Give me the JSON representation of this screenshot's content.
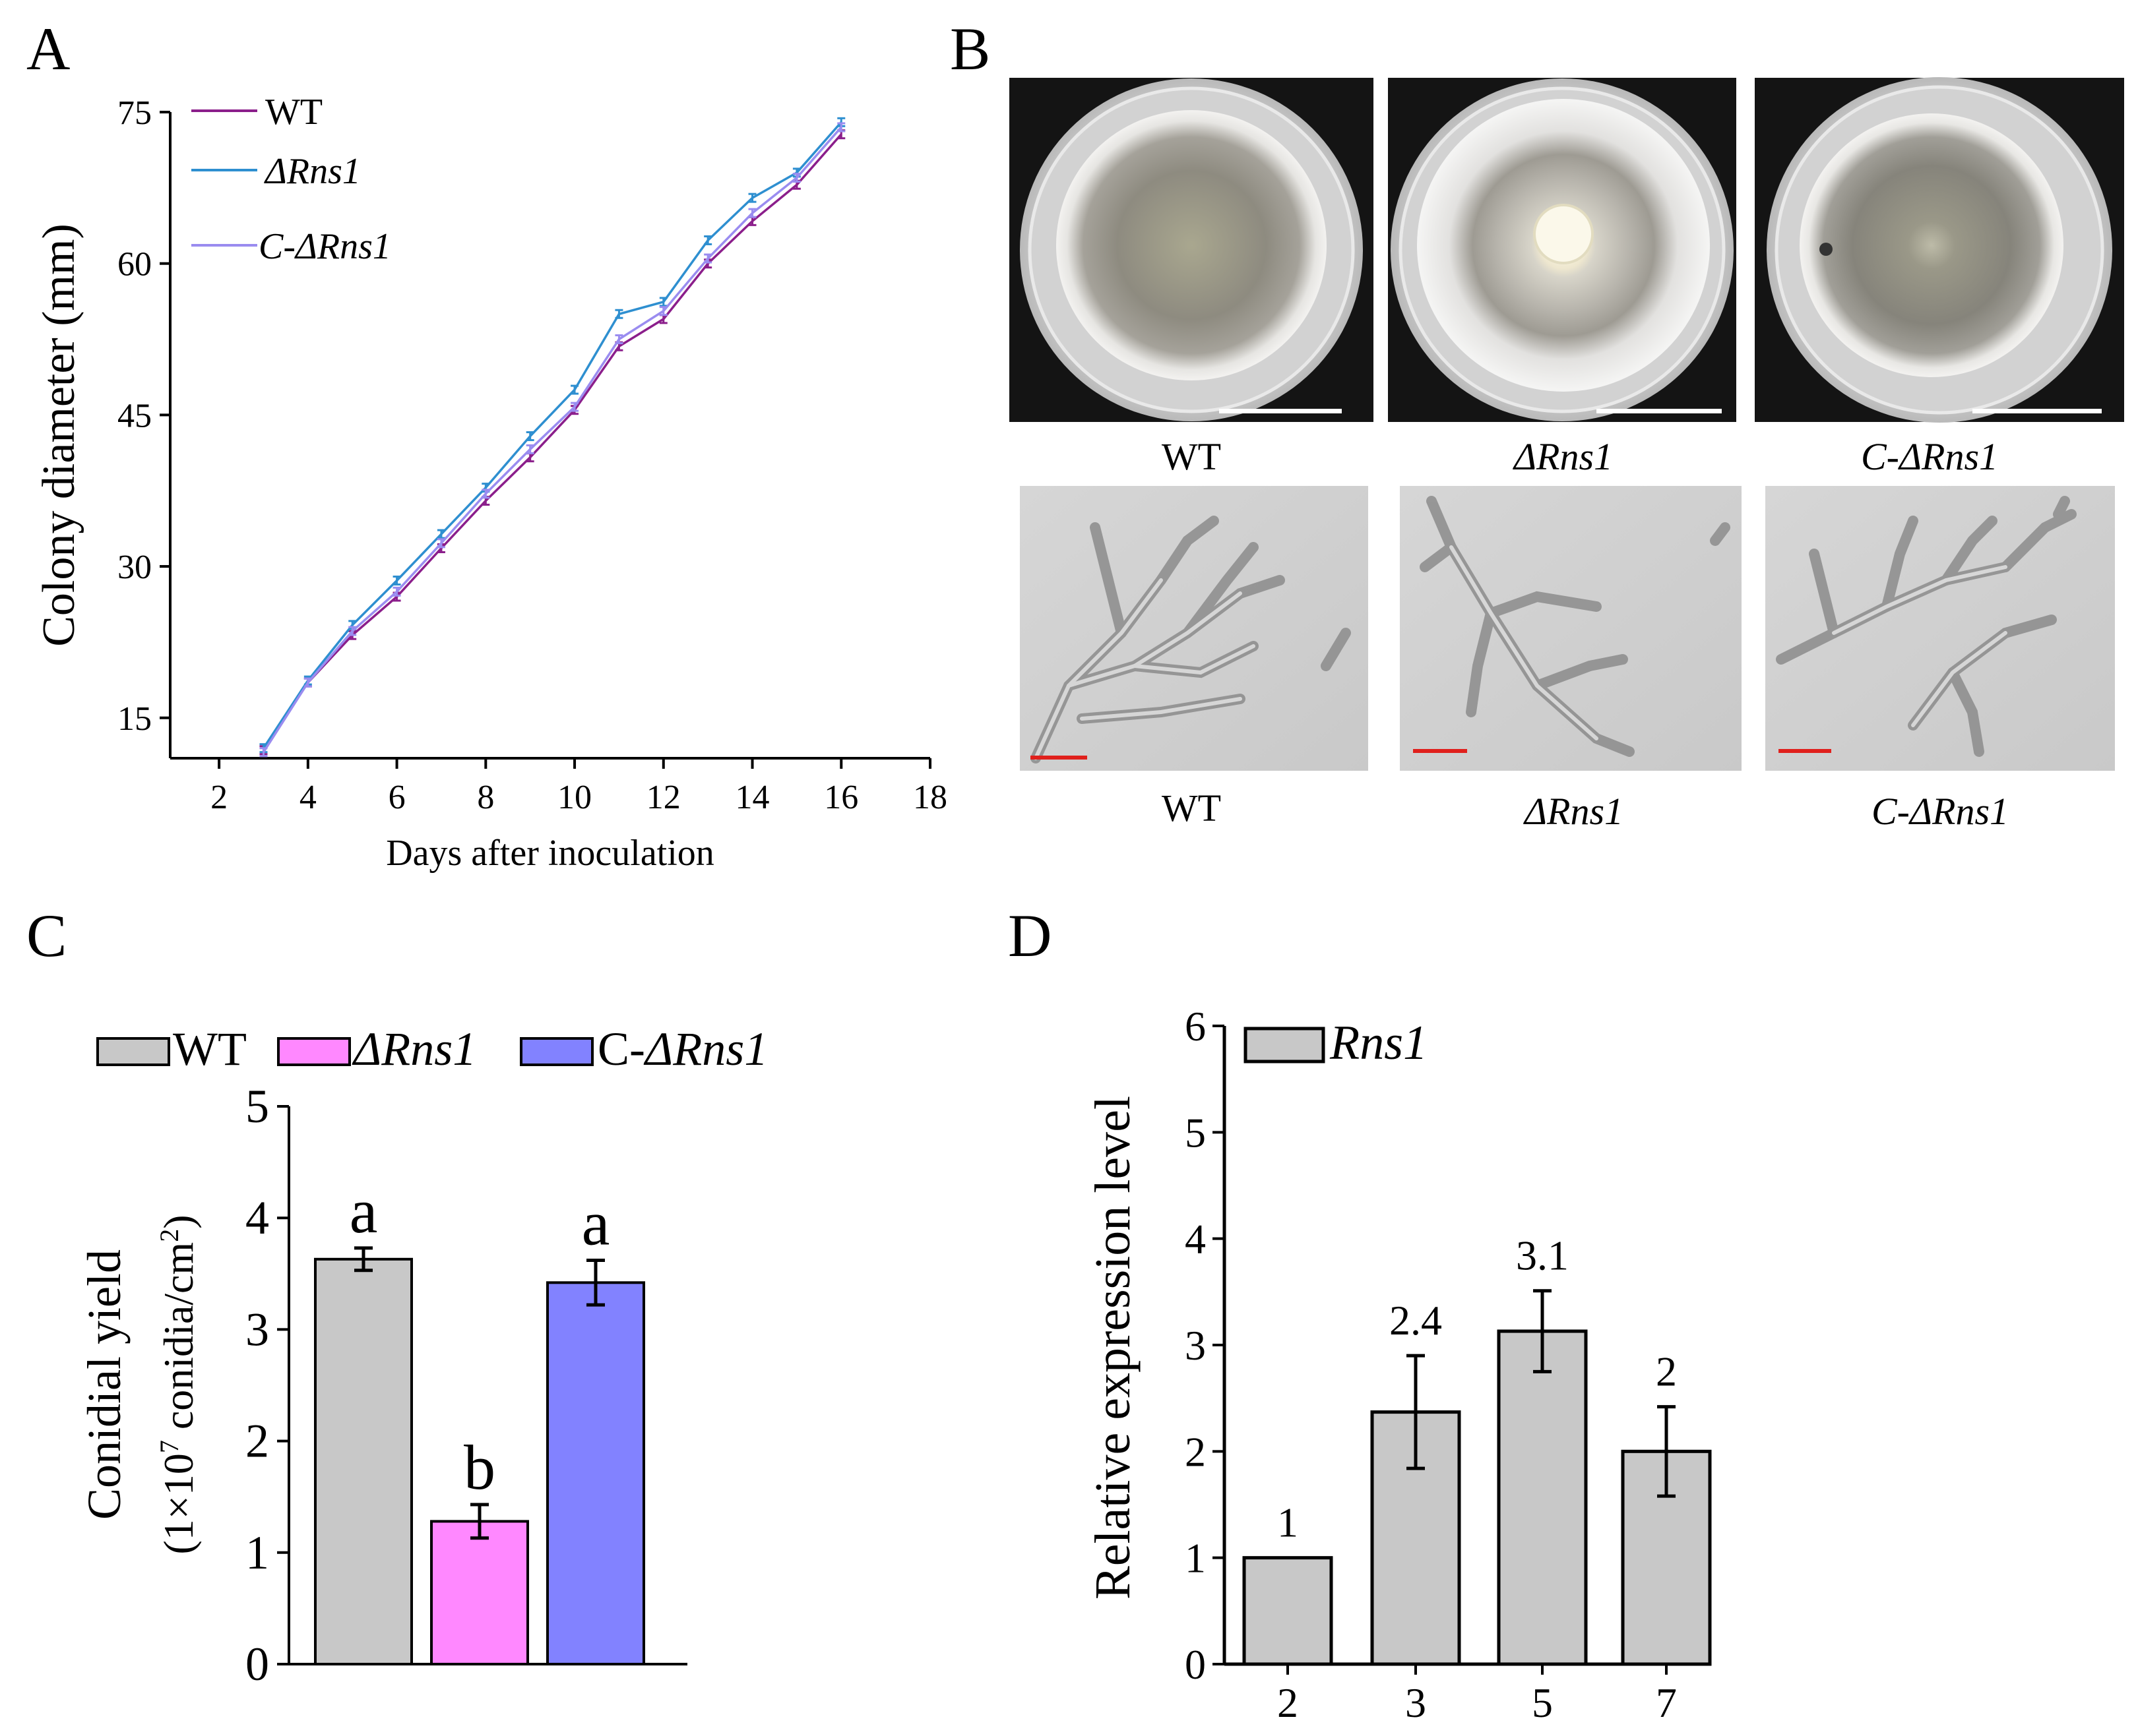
{
  "panels": {
    "A": {
      "letter": "A"
    },
    "B": {
      "letter": "B",
      "plate_labels": [
        "WT",
        "ΔRns1",
        "C-ΔRns1"
      ],
      "micro_labels": [
        "WT",
        "ΔRns1",
        "C-ΔRns1"
      ]
    },
    "C": {
      "letter": "C"
    },
    "D": {
      "letter": "D"
    }
  },
  "colors": {
    "wt_line": "#8B1E8B",
    "drns1_line": "#2E8FD0",
    "c_line": "#9A8CF0",
    "bar_wt": "#C8C8C8",
    "bar_drns1": "#FF88FF",
    "bar_c": "#8282FF",
    "bar_rns1": "#C8C8C8",
    "scale_white": "#ffffff",
    "scale_red": "#E0201C"
  },
  "chart_data": [
    {
      "panel": "A",
      "type": "line",
      "xlabel": "Days after inoculation",
      "ylabel": "Colony diameter (mm)",
      "xlim": [
        0.9,
        18
      ],
      "ylim": [
        11,
        75
      ],
      "xticks": [
        2,
        4,
        6,
        8,
        10,
        12,
        14,
        16,
        18
      ],
      "yticks": [
        15,
        30,
        45,
        60,
        75
      ],
      "x": [
        3,
        4,
        5,
        6,
        7,
        8,
        9,
        10,
        11,
        12,
        13,
        14,
        15,
        16
      ],
      "legend_position": "top-left",
      "series": [
        {
          "name": "WT",
          "italic": false,
          "color_key": "wt_line",
          "values": [
            11.8,
            18.5,
            23.2,
            27.0,
            31.8,
            36.5,
            40.8,
            45.5,
            51.8,
            54.5,
            60.0,
            64.2,
            67.8,
            72.8
          ]
        },
        {
          "name": "ΔRns1",
          "italic": true,
          "color_key": "drns1_line",
          "values": [
            12.0,
            18.7,
            24.2,
            28.6,
            33.2,
            37.8,
            42.9,
            47.5,
            55.0,
            56.2,
            62.3,
            66.5,
            69.0,
            74.0
          ]
        },
        {
          "name": "C-ΔRns1",
          "italic": true,
          "color_key": "c_line",
          "values": [
            11.6,
            18.5,
            23.6,
            27.5,
            32.3,
            37.2,
            41.6,
            45.8,
            52.5,
            55.3,
            60.5,
            65.0,
            68.5,
            73.5
          ]
        }
      ]
    },
    {
      "panel": "C",
      "type": "bar",
      "ylabel": "Conidial yield",
      "ylabel2_prefix": "(1×10",
      "ylabel2_exp": "7",
      "ylabel2_mid": " conidia/cm",
      "ylabel2_exp2": "2",
      "ylabel2_suffix": ")",
      "ylim": [
        0,
        5
      ],
      "yticks": [
        0,
        1,
        2,
        3,
        4,
        5
      ],
      "legend_position": "top",
      "legend": [
        {
          "label": "WT",
          "prefix": "",
          "italic_part": "",
          "color_key": "bar_wt"
        },
        {
          "label": "ΔRns1",
          "prefix": "",
          "italic_part": "ΔRns1",
          "color_key": "bar_drns1"
        },
        {
          "label": "C-ΔRns1",
          "prefix": "C-",
          "italic_part": "ΔRns1",
          "color_key": "bar_c"
        }
      ],
      "categories": [
        "WT",
        "ΔRns1",
        "C-ΔRns1"
      ],
      "values": [
        3.63,
        1.28,
        3.42
      ],
      "errors": [
        0.1,
        0.15,
        0.2
      ],
      "letters": [
        "a",
        "b",
        "a"
      ]
    },
    {
      "panel": "D",
      "type": "bar",
      "ylabel": "Relative expression level",
      "ylim": [
        0,
        6
      ],
      "yticks": [
        0,
        1,
        2,
        3,
        4,
        5,
        6
      ],
      "legend_position": "top-left",
      "legend": [
        {
          "label": "Rns1",
          "italic": true,
          "color_key": "bar_rns1"
        }
      ],
      "categories": [
        "2",
        "3",
        "5",
        "7"
      ],
      "values": [
        1.0,
        2.37,
        3.13,
        2.0
      ],
      "errors": [
        0,
        0.53,
        0.38,
        0.42
      ],
      "value_labels": [
        "1",
        "2.4",
        "3.1",
        "2"
      ]
    }
  ]
}
